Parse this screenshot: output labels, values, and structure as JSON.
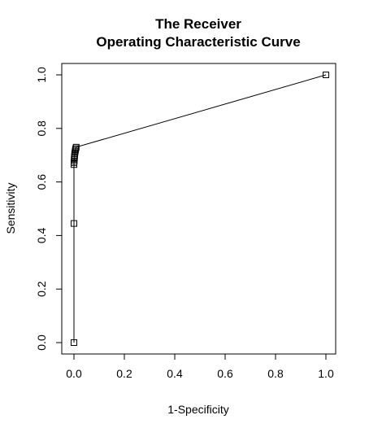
{
  "chart_data": {
    "type": "line",
    "title": [
      "The Receiver",
      "Operating Characteristic Curve"
    ],
    "xlabel": "1-Specificity",
    "ylabel": "Sensitivity",
    "xlim": [
      0,
      1
    ],
    "ylim": [
      0,
      1
    ],
    "x_ticks": [
      0.0,
      0.2,
      0.4,
      0.6,
      0.8,
      1.0
    ],
    "y_ticks": [
      0.0,
      0.2,
      0.4,
      0.6,
      0.8,
      1.0
    ],
    "x_tick_labels": [
      "0.0",
      "0.2",
      "0.4",
      "0.6",
      "0.8",
      "1.0"
    ],
    "y_tick_labels": [
      "0.0",
      "0.2",
      "0.4",
      "0.6",
      "0.8",
      "1.0"
    ],
    "marker": "open-square",
    "grid": false,
    "points": [
      {
        "x": 0.0,
        "y": 0.0
      },
      {
        "x": 0.0,
        "y": 0.445
      },
      {
        "x": 0.0,
        "y": 0.665
      },
      {
        "x": 0.0,
        "y": 0.672
      },
      {
        "x": 0.001,
        "y": 0.678
      },
      {
        "x": 0.001,
        "y": 0.684
      },
      {
        "x": 0.002,
        "y": 0.69
      },
      {
        "x": 0.002,
        "y": 0.695
      },
      {
        "x": 0.003,
        "y": 0.7
      },
      {
        "x": 0.003,
        "y": 0.705
      },
      {
        "x": 0.004,
        "y": 0.71
      },
      {
        "x": 0.005,
        "y": 0.715
      },
      {
        "x": 0.006,
        "y": 0.72
      },
      {
        "x": 0.007,
        "y": 0.725
      },
      {
        "x": 0.009,
        "y": 0.73
      },
      {
        "x": 1.0,
        "y": 1.0
      }
    ]
  }
}
